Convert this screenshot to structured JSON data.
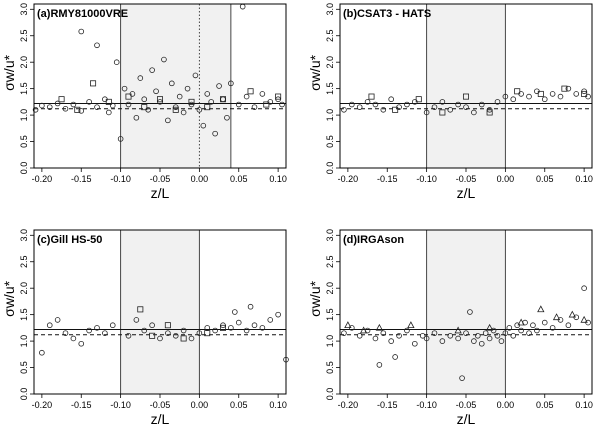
{
  "chart_data": [
    {
      "type": "scatter",
      "title": "(a)RMY81000VRE",
      "xlabel": "z/L",
      "ylabel": "σw/u*",
      "xlim": [
        -0.21,
        0.11
      ],
      "ylim": [
        0,
        3.1
      ],
      "xticks": [
        "-0.20",
        "-0.15",
        "-0.10",
        "-0.05",
        "0.00",
        "0.05",
        "0.10"
      ],
      "yticks": [
        "0.0",
        "0.5",
        "1.0",
        "1.5",
        "2.0",
        "2.5",
        "3.0"
      ],
      "shaded_region": [
        -0.1,
        0.04
      ],
      "vertical_lines": [
        -0.1,
        0.04
      ],
      "dotted_vertical": 0.0,
      "fit_solid": 1.22,
      "fit_dashed": 1.12,
      "grid": false,
      "series": [
        {
          "marker": "circle",
          "points": [
            [
              -0.208,
              1.1
            ],
            [
              -0.2,
              1.18
            ],
            [
              -0.19,
              1.15
            ],
            [
              -0.18,
              1.22
            ],
            [
              -0.17,
              1.12
            ],
            [
              -0.16,
              1.2
            ],
            [
              -0.15,
              1.08
            ],
            [
              -0.14,
              1.25
            ],
            [
              -0.13,
              1.15
            ],
            [
              -0.12,
              1.3
            ],
            [
              -0.115,
              1.05
            ],
            [
              -0.11,
              1.18
            ],
            [
              -0.105,
              2.0
            ],
            [
              -0.1,
              0.55
            ],
            [
              -0.095,
              1.5
            ],
            [
              -0.09,
              1.2
            ],
            [
              -0.085,
              1.4
            ],
            [
              -0.08,
              0.95
            ],
            [
              -0.075,
              1.7
            ],
            [
              -0.07,
              1.3
            ],
            [
              -0.065,
              1.1
            ],
            [
              -0.06,
              1.85
            ],
            [
              -0.055,
              1.45
            ],
            [
              -0.05,
              1.25
            ],
            [
              -0.045,
              2.05
            ],
            [
              -0.04,
              0.9
            ],
            [
              -0.035,
              1.6
            ],
            [
              -0.03,
              1.15
            ],
            [
              -0.025,
              1.35
            ],
            [
              -0.02,
              1.05
            ],
            [
              -0.015,
              1.5
            ],
            [
              -0.01,
              1.2
            ],
            [
              -0.005,
              1.75
            ],
            [
              0.0,
              1.1
            ],
            [
              0.005,
              0.8
            ],
            [
              0.01,
              1.4
            ],
            [
              0.015,
              1.25
            ],
            [
              0.02,
              0.65
            ],
            [
              0.025,
              1.55
            ],
            [
              0.03,
              1.3
            ],
            [
              0.035,
              0.95
            ],
            [
              0.04,
              1.6
            ],
            [
              0.05,
              1.2
            ],
            [
              0.06,
              1.35
            ],
            [
              0.07,
              1.15
            ],
            [
              0.08,
              1.4
            ],
            [
              0.09,
              1.25
            ],
            [
              0.1,
              1.3
            ],
            [
              0.105,
              1.2
            ],
            [
              0.055,
              3.05
            ],
            [
              -0.15,
              2.58
            ],
            [
              -0.13,
              2.32
            ]
          ]
        },
        {
          "marker": "square",
          "points": [
            [
              -0.175,
              1.3
            ],
            [
              -0.155,
              1.1
            ],
            [
              -0.135,
              1.6
            ],
            [
              -0.115,
              1.25
            ],
            [
              -0.09,
              1.35
            ],
            [
              -0.07,
              1.15
            ],
            [
              -0.05,
              1.3
            ],
            [
              -0.03,
              1.1
            ],
            [
              -0.01,
              1.25
            ],
            [
              0.01,
              1.15
            ],
            [
              0.03,
              1.3
            ],
            [
              0.065,
              1.45
            ],
            [
              0.085,
              1.2
            ],
            [
              0.1,
              1.35
            ]
          ]
        }
      ]
    },
    {
      "type": "scatter",
      "title": "(b)CSAT3 - HATS",
      "xlabel": "z/L",
      "ylabel": "σw/u*",
      "xlim": [
        -0.21,
        0.11
      ],
      "ylim": [
        0,
        3.1
      ],
      "xticks": [
        "-0.20",
        "-0.15",
        "-0.10",
        "-0.05",
        "0.00",
        "0.05",
        "0.10"
      ],
      "yticks": [
        "0.0",
        "0.5",
        "1.0",
        "1.5",
        "2.0",
        "2.5",
        "3.0"
      ],
      "shaded_region": [
        -0.1,
        0.0
      ],
      "vertical_lines": [
        -0.1,
        0.0
      ],
      "fit_solid": 1.22,
      "fit_dashed": 1.12,
      "grid": false,
      "series": [
        {
          "marker": "circle",
          "points": [
            [
              -0.205,
              1.1
            ],
            [
              -0.195,
              1.2
            ],
            [
              -0.185,
              1.15
            ],
            [
              -0.175,
              1.25
            ],
            [
              -0.165,
              1.2
            ],
            [
              -0.155,
              1.1
            ],
            [
              -0.145,
              1.3
            ],
            [
              -0.135,
              1.15
            ],
            [
              -0.125,
              1.2
            ],
            [
              -0.115,
              1.25
            ],
            [
              -0.1,
              1.05
            ],
            [
              -0.09,
              1.15
            ],
            [
              -0.08,
              1.25
            ],
            [
              -0.07,
              1.1
            ],
            [
              -0.06,
              1.2
            ],
            [
              -0.05,
              1.15
            ],
            [
              -0.04,
              1.05
            ],
            [
              -0.03,
              1.2
            ],
            [
              -0.02,
              1.1
            ],
            [
              -0.01,
              1.25
            ],
            [
              0.0,
              1.35
            ],
            [
              0.01,
              1.3
            ],
            [
              0.02,
              1.4
            ],
            [
              0.03,
              1.35
            ],
            [
              0.04,
              1.45
            ],
            [
              0.05,
              1.3
            ],
            [
              0.06,
              1.4
            ],
            [
              0.07,
              1.35
            ],
            [
              0.08,
              1.5
            ],
            [
              0.09,
              1.4
            ],
            [
              0.1,
              1.45
            ],
            [
              0.105,
              1.35
            ]
          ]
        },
        {
          "marker": "square",
          "points": [
            [
              -0.17,
              1.35
            ],
            [
              -0.14,
              1.1
            ],
            [
              -0.11,
              1.3
            ],
            [
              -0.08,
              1.05
            ],
            [
              -0.05,
              1.35
            ],
            [
              -0.02,
              1.05
            ],
            [
              0.015,
              1.45
            ],
            [
              0.045,
              1.4
            ],
            [
              0.075,
              1.5
            ],
            [
              0.1,
              1.4
            ]
          ]
        }
      ]
    },
    {
      "type": "scatter",
      "title": "(c)Gill HS-50",
      "xlabel": "z/L",
      "ylabel": "σw/u*",
      "xlim": [
        -0.21,
        0.11
      ],
      "ylim": [
        0,
        3.1
      ],
      "xticks": [
        "-0.20",
        "-0.15",
        "-0.10",
        "-0.05",
        "0.00",
        "0.05",
        "0.10"
      ],
      "yticks": [
        "0.0",
        "0.5",
        "1.0",
        "1.5",
        "2.0",
        "2.5",
        "3.0"
      ],
      "shaded_region": [
        -0.1,
        0.0
      ],
      "vertical_lines": [
        -0.1,
        0.0
      ],
      "fit_solid": 1.22,
      "fit_dashed": 1.12,
      "grid": false,
      "series": [
        {
          "marker": "circle",
          "points": [
            [
              -0.2,
              0.78
            ],
            [
              -0.19,
              1.3
            ],
            [
              -0.18,
              1.4
            ],
            [
              -0.17,
              1.15
            ],
            [
              -0.16,
              1.05
            ],
            [
              -0.15,
              0.95
            ],
            [
              -0.14,
              1.2
            ],
            [
              -0.13,
              1.25
            ],
            [
              -0.12,
              1.15
            ],
            [
              -0.11,
              1.3
            ],
            [
              -0.09,
              1.1
            ],
            [
              -0.08,
              1.4
            ],
            [
              -0.07,
              1.2
            ],
            [
              -0.06,
              1.3
            ],
            [
              -0.05,
              1.05
            ],
            [
              -0.04,
              1.15
            ],
            [
              -0.03,
              1.1
            ],
            [
              -0.02,
              1.2
            ],
            [
              -0.01,
              1.05
            ],
            [
              0.0,
              1.15
            ],
            [
              0.01,
              1.25
            ],
            [
              0.02,
              1.2
            ],
            [
              0.03,
              1.3
            ],
            [
              0.04,
              1.25
            ],
            [
              0.05,
              1.35
            ],
            [
              0.06,
              1.2
            ],
            [
              0.07,
              1.3
            ],
            [
              0.08,
              1.25
            ],
            [
              0.09,
              1.4
            ],
            [
              0.1,
              1.5
            ],
            [
              0.11,
              0.65
            ],
            [
              0.065,
              1.65
            ],
            [
              0.045,
              1.55
            ]
          ]
        },
        {
          "marker": "square",
          "points": [
            [
              -0.075,
              1.6
            ],
            [
              -0.06,
              1.1
            ],
            [
              -0.04,
              1.3
            ],
            [
              -0.02,
              1.05
            ],
            [
              0.01,
              1.15
            ],
            [
              0.03,
              1.25
            ]
          ]
        }
      ]
    },
    {
      "type": "scatter",
      "title": "(d)IRGAson",
      "xlabel": "z/L",
      "ylabel": "σw/u*",
      "xlim": [
        -0.21,
        0.11
      ],
      "ylim": [
        0,
        3.1
      ],
      "xticks": [
        "-0.20",
        "-0.15",
        "-0.10",
        "-0.05",
        "0.00",
        "0.05",
        "0.10"
      ],
      "yticks": [
        "0.0",
        "0.5",
        "1.0",
        "1.5",
        "2.0",
        "2.5",
        "3.0"
      ],
      "shaded_region": [
        -0.1,
        0.0
      ],
      "vertical_lines": [
        -0.1,
        0.0
      ],
      "fit_solid": 1.22,
      "fit_dashed": 1.12,
      "grid": false,
      "series": [
        {
          "marker": "circle",
          "points": [
            [
              -0.205,
              1.15
            ],
            [
              -0.195,
              1.25
            ],
            [
              -0.185,
              1.1
            ],
            [
              -0.175,
              1.2
            ],
            [
              -0.165,
              1.05
            ],
            [
              -0.155,
              1.15
            ],
            [
              -0.145,
              1.0
            ],
            [
              -0.14,
              0.7
            ],
            [
              -0.135,
              1.1
            ],
            [
              -0.125,
              1.2
            ],
            [
              -0.115,
              0.95
            ],
            [
              -0.105,
              1.1
            ],
            [
              -0.1,
              1.05
            ],
            [
              -0.09,
              1.15
            ],
            [
              -0.08,
              1.0
            ],
            [
              -0.07,
              1.1
            ],
            [
              -0.06,
              1.05
            ],
            [
              -0.05,
              1.15
            ],
            [
              -0.045,
              1.55
            ],
            [
              -0.04,
              1.0
            ],
            [
              -0.035,
              1.1
            ],
            [
              -0.03,
              0.95
            ],
            [
              -0.025,
              1.15
            ],
            [
              -0.02,
              1.05
            ],
            [
              -0.015,
              1.2
            ],
            [
              -0.01,
              1.1
            ],
            [
              -0.005,
              1.0
            ],
            [
              0.0,
              1.15
            ],
            [
              0.005,
              1.25
            ],
            [
              0.01,
              1.1
            ],
            [
              0.015,
              1.3
            ],
            [
              0.02,
              1.2
            ],
            [
              0.025,
              1.35
            ],
            [
              0.03,
              1.15
            ],
            [
              0.035,
              1.3
            ],
            [
              0.04,
              1.2
            ],
            [
              0.05,
              1.35
            ],
            [
              0.06,
              1.25
            ],
            [
              0.07,
              1.4
            ],
            [
              0.08,
              1.3
            ],
            [
              0.09,
              1.45
            ],
            [
              0.1,
              2.0
            ],
            [
              0.105,
              1.35
            ],
            [
              -0.16,
              0.55
            ],
            [
              -0.055,
              0.3
            ]
          ]
        },
        {
          "marker": "triangle",
          "points": [
            [
              -0.2,
              1.3
            ],
            [
              -0.18,
              1.2
            ],
            [
              -0.16,
              1.25
            ],
            [
              -0.12,
              1.3
            ],
            [
              -0.06,
              1.2
            ],
            [
              -0.02,
              1.25
            ],
            [
              0.02,
              1.35
            ],
            [
              0.045,
              1.6
            ],
            [
              0.065,
              1.45
            ],
            [
              0.085,
              1.5
            ],
            [
              0.1,
              1.4
            ]
          ]
        }
      ]
    }
  ]
}
